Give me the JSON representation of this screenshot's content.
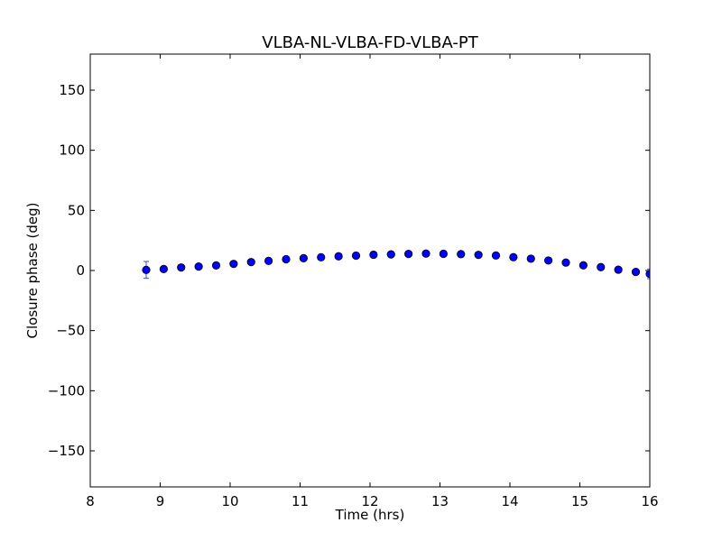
{
  "chart_data": {
    "type": "scatter",
    "title": "VLBA-NL-VLBA-FD-VLBA-PT",
    "xlabel": "Time (hrs)",
    "ylabel": "Closure phase (deg)",
    "xlim": [
      8,
      16
    ],
    "ylim": [
      -180,
      180
    ],
    "xticks": [
      8,
      9,
      10,
      11,
      12,
      13,
      14,
      15,
      16
    ],
    "xtick_labels": [
      "8",
      "9",
      "10",
      "11",
      "12",
      "13",
      "14",
      "15",
      "16"
    ],
    "yticks": [
      150,
      100,
      50,
      0,
      -50,
      -100,
      -150
    ],
    "ytick_labels": [
      "150",
      "100",
      "50",
      "0",
      "−50",
      "−100",
      "−150"
    ],
    "grid": false,
    "colors": {
      "marker_fill": "#0000ff",
      "marker_edge": "#000000",
      "error_bar": "#4a4ab8",
      "frame": "#000000"
    },
    "series": [
      {
        "x": [
          8.8,
          9.05,
          9.3,
          9.55,
          9.8,
          10.05,
          10.3,
          10.55,
          10.8,
          11.05,
          11.3,
          11.55,
          11.8,
          12.05,
          12.3,
          12.55,
          12.8,
          13.05,
          13.3,
          13.55,
          13.8,
          14.05,
          14.3,
          14.55,
          14.8,
          15.05,
          15.3,
          15.55,
          15.8,
          16.0
        ],
        "y": [
          0.5,
          1.2,
          2.5,
          3.3,
          4.2,
          5.5,
          7.0,
          8.0,
          9.4,
          10.2,
          11.0,
          11.8,
          12.4,
          13.1,
          13.4,
          13.8,
          14.1,
          13.9,
          13.6,
          13.0,
          12.5,
          11.1,
          9.8,
          8.3,
          6.6,
          4.3,
          2.8,
          0.7,
          -1.2,
          -2.8
        ],
        "err": [
          7.0,
          2.2,
          2.0,
          1.9,
          1.9,
          1.9,
          1.9,
          1.9,
          1.9,
          1.9,
          1.9,
          1.9,
          1.9,
          1.9,
          1.9,
          1.9,
          1.9,
          1.9,
          1.9,
          1.9,
          1.9,
          1.9,
          1.9,
          1.9,
          1.9,
          1.9,
          1.9,
          1.9,
          2.0,
          4.0
        ]
      }
    ]
  }
}
